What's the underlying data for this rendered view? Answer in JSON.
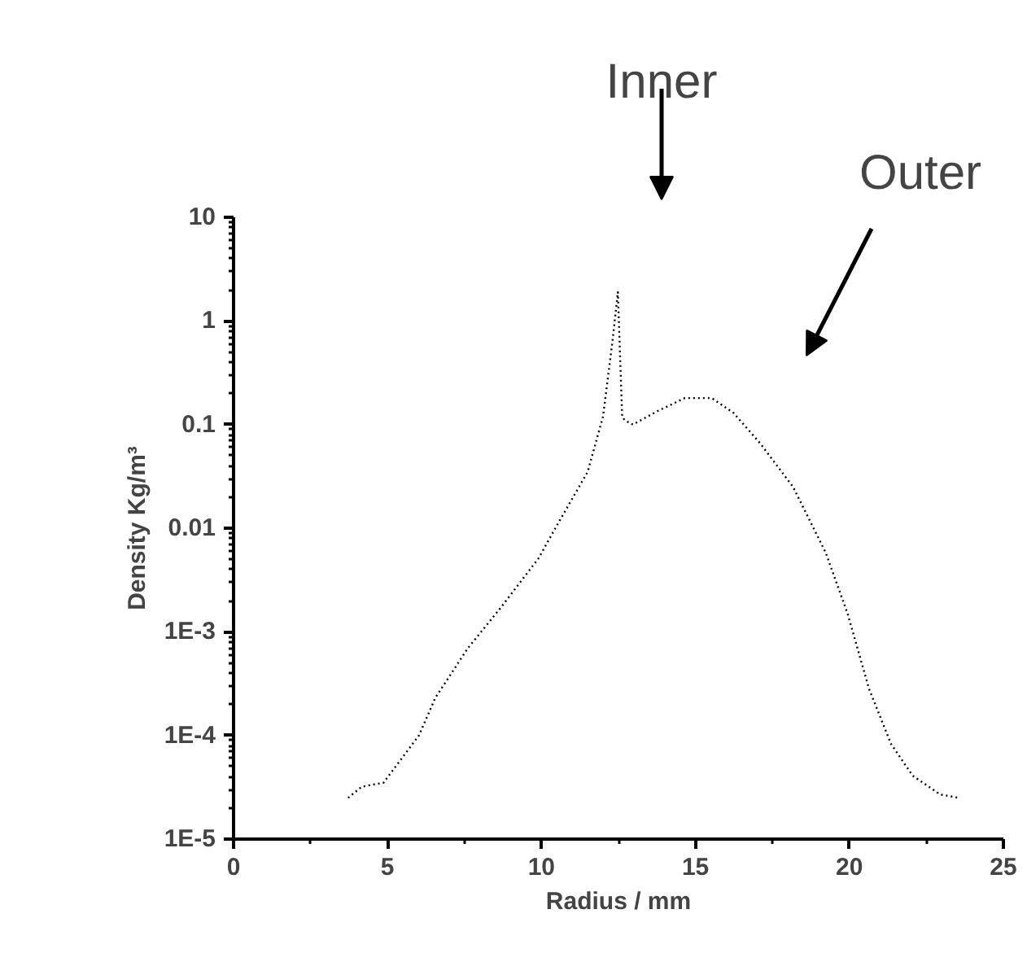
{
  "chart_data": {
    "type": "line",
    "xlabel": "Radius / mm",
    "ylabel": "Density Kg/m³",
    "annotations": [
      "Inner",
      "Outer"
    ],
    "x": [
      3.72,
      4.16,
      4.87,
      6.02,
      6.55,
      7.6,
      8.67,
      9.9,
      10.6,
      11.5,
      12.0,
      12.3,
      12.48,
      12.62,
      12.7,
      12.97,
      13.77,
      14.65,
      15.53,
      16.23,
      17.1,
      18.17,
      19.23,
      19.94,
      20.64,
      21.35,
      22.05,
      22.94,
      23.55
    ],
    "series": [
      {
        "color": "#000000",
        "values": [
          2.5e-05,
          3.2e-05,
          3.5e-05,
          0.0001,
          0.00023,
          0.00069,
          0.0017,
          0.0051,
          0.012,
          0.035,
          0.12,
          0.62,
          1.9,
          0.12,
          0.11,
          0.1,
          0.135,
          0.18,
          0.18,
          0.13,
          0.066,
          0.025,
          0.0058,
          0.0015,
          0.00028,
          8.3e-05,
          4.1e-05,
          2.7e-05,
          2.5e-05
        ]
      }
    ],
    "log": "y",
    "grid": false,
    "marker": "none",
    "line_style": "dotted",
    "xlim": [
      0,
      25
    ],
    "xticks": [
      0,
      5,
      10,
      15,
      20,
      25
    ],
    "ylim": [
      1e-05,
      10
    ],
    "yticks": [
      {
        "value": 1e-05,
        "label": "1E-5"
      },
      {
        "value": 0.0001,
        "label": "1E-4"
      },
      {
        "value": 0.001,
        "label": "1E-3"
      },
      0.01,
      0.1,
      1,
      10
    ]
  }
}
